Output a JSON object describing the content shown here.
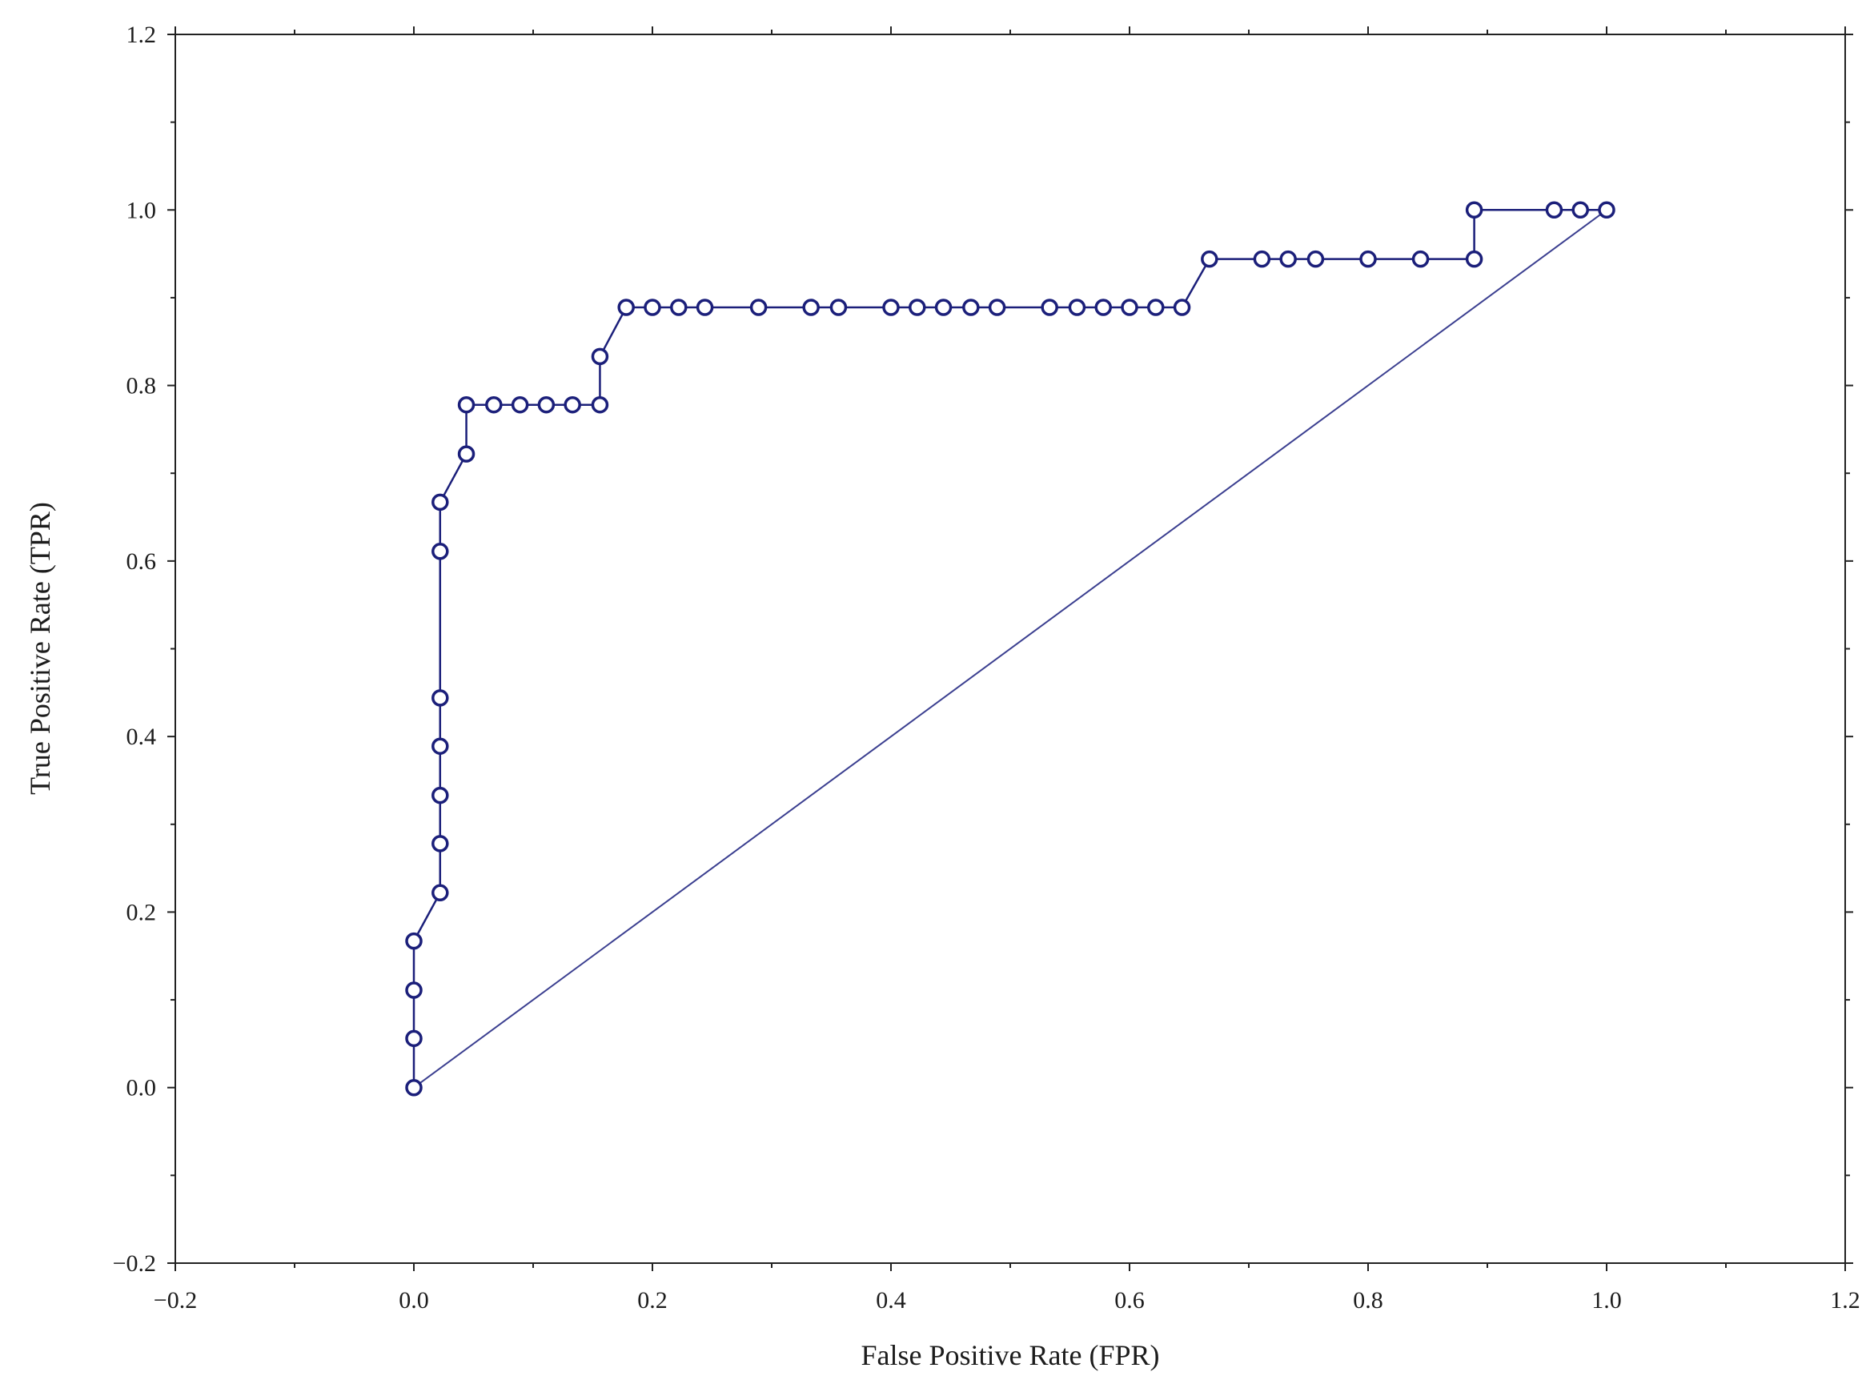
{
  "chart_data": {
    "type": "line",
    "xlabel": "False Positive Rate (FPR)",
    "ylabel": "True Positive Rate (TPR)",
    "xlim": [
      -0.2,
      1.2
    ],
    "ylim": [
      -0.2,
      1.2
    ],
    "x_ticks": [
      "−0.2",
      "0.0",
      "0.2",
      "0.4",
      "0.6",
      "0.8",
      "1.0",
      "1.2"
    ],
    "y_ticks": [
      "−0.2",
      "0.0",
      "0.2",
      "0.4",
      "0.6",
      "0.8",
      "1.0",
      "1.2"
    ],
    "x_tick_values": [
      -0.2,
      0.0,
      0.2,
      0.4,
      0.6,
      0.8,
      1.0,
      1.2
    ],
    "y_tick_values": [
      -0.2,
      0.0,
      0.2,
      0.4,
      0.6,
      0.8,
      1.0,
      1.2
    ],
    "grid": false,
    "legend": "none",
    "colors": {
      "series": "#1b1f7a",
      "diagonal": "#3b3f90",
      "frame": "#222222"
    },
    "series": [
      {
        "marker": "circle",
        "x": [
          0.0,
          0.0,
          0.0,
          0.0,
          0.022,
          0.022,
          0.022,
          0.022,
          0.022,
          0.022,
          0.022,
          0.044,
          0.044,
          0.067,
          0.089,
          0.111,
          0.133,
          0.156,
          0.156,
          0.178,
          0.2,
          0.222,
          0.244,
          0.289,
          0.333,
          0.356,
          0.4,
          0.422,
          0.444,
          0.467,
          0.489,
          0.533,
          0.556,
          0.578,
          0.6,
          0.622,
          0.644,
          0.667,
          0.711,
          0.733,
          0.756,
          0.8,
          0.844,
          0.889,
          0.889,
          0.956,
          0.978,
          1.0
        ],
        "y": [
          0.0,
          0.056,
          0.111,
          0.167,
          0.222,
          0.278,
          0.333,
          0.389,
          0.444,
          0.611,
          0.667,
          0.722,
          0.778,
          0.778,
          0.778,
          0.778,
          0.778,
          0.778,
          0.833,
          0.889,
          0.889,
          0.889,
          0.889,
          0.889,
          0.889,
          0.889,
          0.889,
          0.889,
          0.889,
          0.889,
          0.889,
          0.889,
          0.889,
          0.889,
          0.889,
          0.889,
          0.889,
          0.944,
          0.944,
          0.944,
          0.944,
          0.944,
          0.944,
          0.944,
          1.0,
          1.0,
          1.0,
          1.0
        ]
      },
      {
        "marker": "none",
        "x": [
          0.0,
          1.0
        ],
        "y": [
          0.0,
          1.0
        ]
      }
    ]
  }
}
